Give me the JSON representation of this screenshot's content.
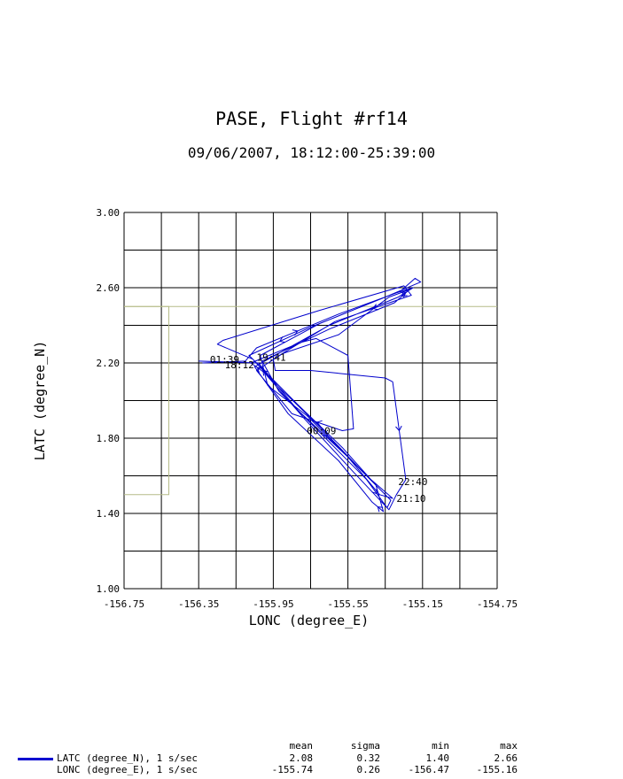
{
  "title": "PASE, Flight #rf14",
  "subtitle": "09/06/2007, 18:12:00-25:39:00",
  "chart_data": {
    "type": "line",
    "xlabel": "LONC (degree_E)",
    "ylabel": "LATC (degree_N)",
    "xlim": [
      -156.75,
      -154.75
    ],
    "ylim": [
      1.0,
      3.0
    ],
    "x_ticks": [
      "-156.75",
      "-156.35",
      "-155.95",
      "-155.55",
      "-155.15",
      "-154.75"
    ],
    "y_ticks": [
      "1.00",
      "1.40",
      "1.80",
      "2.20",
      "2.60",
      "3.00"
    ],
    "grid": true,
    "series": [
      {
        "name": "LATC (degree_N), 1 s/sec",
        "color": "#0000cc",
        "points": [
          [
            -156.33,
            2.2
          ],
          [
            -156.1,
            2.21
          ],
          [
            -156.04,
            2.28
          ],
          [
            -155.6,
            2.46
          ],
          [
            -155.27,
            2.58
          ],
          [
            -155.19,
            2.65
          ],
          [
            -155.16,
            2.63
          ],
          [
            -155.35,
            2.55
          ],
          [
            -155.75,
            2.39
          ],
          [
            -156.08,
            2.24
          ],
          [
            -155.97,
            2.13
          ],
          [
            -155.82,
            1.98
          ],
          [
            -155.58,
            1.75
          ],
          [
            -155.4,
            1.55
          ],
          [
            -155.36,
            1.41
          ],
          [
            -155.42,
            1.46
          ],
          [
            -155.6,
            1.68
          ],
          [
            -155.87,
            1.93
          ],
          [
            -156.05,
            2.18
          ],
          [
            -155.65,
            2.4
          ],
          [
            -155.28,
            2.55
          ],
          [
            -155.2,
            2.6
          ],
          [
            -155.3,
            2.57
          ],
          [
            -155.7,
            2.41
          ],
          [
            -156.02,
            2.24
          ],
          [
            -155.98,
            2.08
          ],
          [
            -155.77,
            1.92
          ],
          [
            -155.55,
            1.7
          ],
          [
            -155.38,
            1.5
          ],
          [
            -155.31,
            1.48
          ],
          [
            -155.45,
            1.6
          ],
          [
            -155.7,
            1.86
          ],
          [
            -155.95,
            2.1
          ],
          [
            -156.06,
            2.22
          ],
          [
            -156.25,
            2.3
          ],
          [
            -156.22,
            2.32
          ],
          [
            -155.7,
            2.48
          ],
          [
            -155.25,
            2.61
          ],
          [
            -155.21,
            2.56
          ],
          [
            -155.62,
            2.42
          ],
          [
            -155.95,
            2.22
          ],
          [
            -155.94,
            2.16
          ],
          [
            -155.75,
            2.16
          ],
          [
            -155.35,
            2.12
          ],
          [
            -155.31,
            2.1
          ],
          [
            -155.24,
            1.58
          ],
          [
            -155.29,
            1.5
          ],
          [
            -155.33,
            1.42
          ],
          [
            -155.52,
            1.62
          ],
          [
            -155.78,
            1.9
          ],
          [
            -156.0,
            2.15
          ],
          [
            -156.07,
            2.2
          ],
          [
            -155.8,
            2.31
          ],
          [
            -155.72,
            2.33
          ],
          [
            -155.55,
            2.24
          ],
          [
            -155.52,
            1.85
          ],
          [
            -155.58,
            1.84
          ],
          [
            -155.85,
            1.93
          ],
          [
            -156.04,
            2.16
          ],
          [
            -155.9,
            2.25
          ],
          [
            -155.6,
            2.35
          ],
          [
            -155.33,
            2.55
          ],
          [
            -155.22,
            2.59
          ],
          [
            -155.3,
            2.52
          ],
          [
            -155.65,
            2.38
          ],
          [
            -156.01,
            2.21
          ],
          [
            -155.92,
            2.05
          ],
          [
            -155.7,
            1.83
          ],
          [
            -155.45,
            1.58
          ],
          [
            -155.34,
            1.43
          ],
          [
            -155.32,
            1.47
          ],
          [
            -155.55,
            1.7
          ],
          [
            -155.82,
            1.95
          ],
          [
            -156.03,
            2.2
          ],
          [
            -156.35,
            2.21
          ]
        ]
      }
    ],
    "annotations": [
      {
        "text": "01:39",
        "x": -156.29,
        "y": 2.22
      },
      {
        "text": "18:12",
        "x": -156.21,
        "y": 2.19
      },
      {
        "text": "19:41",
        "x": -156.04,
        "y": 2.23
      },
      {
        "text": "00:09",
        "x": -155.77,
        "y": 1.84
      },
      {
        "text": "22:40",
        "x": -155.28,
        "y": 1.57
      },
      {
        "text": "21:10",
        "x": -155.29,
        "y": 1.48
      }
    ],
    "background_box": {
      "x": [
        -156.75,
        -156.51,
        -156.51,
        -156.75
      ],
      "y": [
        2.5,
        2.5,
        1.5,
        1.5
      ],
      "color": "#b5bb88"
    }
  },
  "stats": {
    "headers": [
      "mean",
      "sigma",
      "min",
      "max"
    ],
    "rows": [
      {
        "label": "LATC (degree_N), 1 s/sec",
        "values": [
          "2.08",
          "0.32",
          "1.40",
          "2.66"
        ]
      },
      {
        "label": "LONC (degree_E), 1 s/sec",
        "values": [
          "-155.74",
          "0.26",
          "-156.47",
          "-155.16"
        ]
      }
    ]
  }
}
